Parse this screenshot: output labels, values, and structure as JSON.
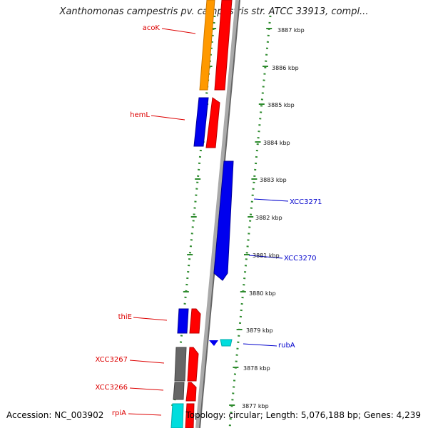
{
  "title": "Xanthomonas campestris pv. campestris str. ATCC 33913, compl...",
  "footer": {
    "accession": "Accession: NC_003902",
    "summary": "Topology: circular; Length: 5,076,188 bp; Genes: 4,239"
  },
  "colors": {
    "backbone": "#888888",
    "tick": "#2e8b2e",
    "label_left": "#dd0000",
    "label_right": "#0000cc",
    "orange": "#ff9900",
    "red": "#ff0000",
    "blue": "#0000ee",
    "gray": "#666666",
    "cyan": "#00cccc"
  },
  "ticks": [
    "3887 kbp",
    "3886 kbp",
    "3885 kbp",
    "3884 kbp",
    "3883 kbp",
    "3882 kbp",
    "3881 kbp",
    "3880 kbp",
    "3879 kbp",
    "3878 kbp",
    "3877 kbp"
  ],
  "labels_left": [
    "acoK",
    "hemL",
    "thiE",
    "XCC3267",
    "XCC3266",
    "rpiA"
  ],
  "labels_right": [
    "XCC3271",
    "XCC3270",
    "rubA"
  ]
}
